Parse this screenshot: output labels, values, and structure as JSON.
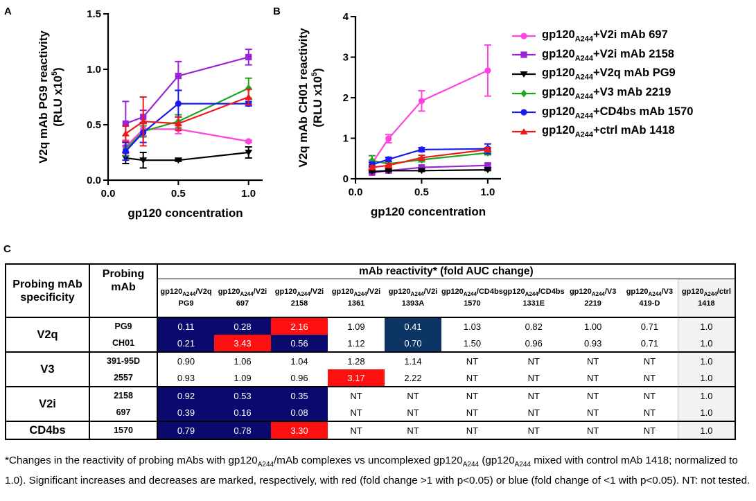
{
  "panels": {
    "a": "A",
    "b": "B",
    "c": "C"
  },
  "chart_data": [
    {
      "type": "line",
      "title": "",
      "xlabel": "gp120 concentration",
      "ylabel": "V2q mAb PG9 reactivity",
      "ylabel2": "(RLU x10",
      "ylabel2_sup": "5",
      "ylabel2_end": ")",
      "xlim": [
        0,
        1.1
      ],
      "ylim": [
        0,
        1.5
      ],
      "xticks": [
        "0.0",
        "0.5",
        "1.0"
      ],
      "yticks": [
        "0.0",
        "0.5",
        "1.0",
        "1.5"
      ],
      "x": [
        0.125,
        0.25,
        0.5,
        1.0
      ],
      "series": [
        {
          "name": "gp120A244+V2i mAb 697",
          "color": "#ff44dd",
          "marker": "circle",
          "values": [
            0.3,
            0.46,
            0.46,
            0.35
          ],
          "errors": [
            0.06,
            0.06,
            0.04,
            0.01
          ]
        },
        {
          "name": "gp120A244+V2i mAb 2158",
          "color": "#9a24d8",
          "marker": "square",
          "values": [
            0.51,
            0.57,
            0.94,
            1.11
          ],
          "errors": [
            0.2,
            0.06,
            0.13,
            0.07
          ]
        },
        {
          "name": "gp120A244+V2q mAb PG9",
          "color": "#000000",
          "marker": "tri-down",
          "values": [
            0.2,
            0.18,
            0.18,
            0.25
          ],
          "errors": [
            0.05,
            0.07,
            0.01,
            0.05
          ]
        },
        {
          "name": "gp120A244+V3 mAb 2219",
          "color": "#1fa51f",
          "marker": "diamond",
          "values": [
            0.28,
            0.44,
            0.53,
            0.83
          ],
          "errors": [
            0.06,
            0.05,
            0.06,
            0.09
          ]
        },
        {
          "name": "gp120A244+CD4bs mAb 1570",
          "color": "#1a1aee",
          "marker": "circle",
          "values": [
            0.26,
            0.43,
            0.69,
            0.69
          ],
          "errors": [
            0.08,
            0.09,
            0.12,
            0.02
          ]
        },
        {
          "name": "gp120A244+ctrl mAb 1418",
          "color": "#ee1a1a",
          "marker": "tri-up",
          "values": [
            0.42,
            0.53,
            0.51,
            0.75
          ],
          "errors": [
            0.07,
            0.22,
            0.06,
            0.07
          ]
        }
      ]
    },
    {
      "type": "line",
      "title": "",
      "xlabel": "gp120 concentration",
      "ylabel": "V2q mAb CH01 reactivity",
      "ylabel2": "(RLU x10",
      "ylabel2_sup": "5",
      "ylabel2_end": ")",
      "xlim": [
        0,
        1.1
      ],
      "ylim": [
        0,
        4
      ],
      "xticks": [
        "0.0",
        "0.5",
        "1.0"
      ],
      "yticks": [
        "0",
        "1",
        "2",
        "3",
        "4"
      ],
      "x": [
        0.125,
        0.25,
        0.5,
        1.0
      ],
      "series": [
        {
          "name": "gp120A244+V2i mAb 697",
          "color": "#ff44dd",
          "marker": "circle",
          "values": [
            0.38,
            0.99,
            1.92,
            2.67
          ],
          "errors": [
            0.08,
            0.1,
            0.25,
            0.63
          ]
        },
        {
          "name": "gp120A244+V2i mAb 2158",
          "color": "#9a24d8",
          "marker": "square",
          "values": [
            0.15,
            0.2,
            0.28,
            0.33
          ],
          "errors": [
            0.03,
            0.03,
            0.04,
            0.05
          ]
        },
        {
          "name": "gp120A244+V2q mAb PG9",
          "color": "#000000",
          "marker": "tri-down",
          "values": [
            0.18,
            0.2,
            0.2,
            0.22
          ],
          "errors": [
            0.02,
            0.02,
            0.02,
            0.02
          ]
        },
        {
          "name": "gp120A244+V3 mAb 2219",
          "color": "#1fa51f",
          "marker": "diamond",
          "values": [
            0.45,
            0.37,
            0.47,
            0.64
          ],
          "errors": [
            0.12,
            0.05,
            0.05,
            0.05
          ]
        },
        {
          "name": "gp120A244+CD4bs mAb 1570",
          "color": "#1a1aee",
          "marker": "circle",
          "values": [
            0.35,
            0.48,
            0.72,
            0.74
          ],
          "errors": [
            0.06,
            0.05,
            0.05,
            0.12
          ]
        },
        {
          "name": "gp120A244+ctrl mAb 1418",
          "color": "#ee1a1a",
          "marker": "tri-up",
          "values": [
            0.28,
            0.33,
            0.52,
            0.72
          ],
          "errors": [
            0.04,
            0.04,
            0.06,
            0.05
          ]
        }
      ]
    },
    {
      "type": "table",
      "title": "mAb reactivity* (fold AUC change)",
      "corner_headers": [
        "Probing mAb specificity",
        "Probing mAb"
      ],
      "column_headers": [
        {
          "base": "gp120",
          "sub": "A244",
          "mab_class": "/V2q",
          "mab": "PG9"
        },
        {
          "base": "gp120",
          "sub": "A244",
          "mab_class": "/V2i",
          "mab": "697"
        },
        {
          "base": "gp120",
          "sub": "A244",
          "mab_class": "/V2i",
          "mab": "2158"
        },
        {
          "base": "gp120",
          "sub": "A244",
          "mab_class": "/V2i",
          "mab": "1361"
        },
        {
          "base": "gp120",
          "sub": "A244",
          "mab_class": "/V2i",
          "mab": "1393A"
        },
        {
          "base": "gp120",
          "sub": "A244",
          "mab_class": "/CD4bs",
          "mab": "1570"
        },
        {
          "base": "gp120",
          "sub": "A244",
          "mab_class": "/CD4bs",
          "mab": "1331E"
        },
        {
          "base": "gp120",
          "sub": "A244",
          "mab_class": "/V3",
          "mab": "2219"
        },
        {
          "base": "gp120",
          "sub": "A244",
          "mab_class": "/V3",
          "mab": "419-D"
        },
        {
          "base": "gp120",
          "sub": "A244",
          "mab_class": "/ctrl",
          "mab": "1418"
        }
      ],
      "groups": [
        {
          "specificity": "V2q",
          "rows": [
            {
              "mab": "PG9",
              "values": [
                "0.11",
                "0.28",
                "2.16",
                "1.09",
                "0.41",
                "1.03",
                "0.82",
                "1.00",
                "0.71",
                "1.0"
              ],
              "marks": [
                "n",
                "n",
                "r",
                "",
                "b",
                "",
                "",
                "",
                "",
                ""
              ]
            },
            {
              "mab": "CH01",
              "values": [
                "0.21",
                "3.43",
                "0.56",
                "1.12",
                "0.70",
                "1.50",
                "0.96",
                "0.93",
                "0.71",
                "1.0"
              ],
              "marks": [
                "n",
                "r",
                "n",
                "",
                "b",
                "",
                "",
                "",
                "",
                ""
              ]
            }
          ]
        },
        {
          "specificity": "V3",
          "rows": [
            {
              "mab": "391-95D",
              "values": [
                "0.90",
                "1.06",
                "1.04",
                "1.28",
                "1.14",
                "NT",
                "NT",
                "NT",
                "NT",
                "1.0"
              ],
              "marks": [
                "",
                "",
                "",
                "",
                "",
                "",
                "",
                "",
                "",
                ""
              ]
            },
            {
              "mab": "2557",
              "values": [
                "0.93",
                "1.09",
                "0.96",
                "3.17",
                "2.22",
                "NT",
                "NT",
                "NT",
                "NT",
                "1.0"
              ],
              "marks": [
                "",
                "",
                "",
                "r",
                "",
                "",
                "",
                "",
                "",
                ""
              ]
            }
          ]
        },
        {
          "specificity": "V2i",
          "rows": [
            {
              "mab": "2158",
              "values": [
                "0.92",
                "0.53",
                "0.35",
                "NT",
                "NT",
                "NT",
                "NT",
                "NT",
                "NT",
                "1.0"
              ],
              "marks": [
                "n",
                "n",
                "n",
                "",
                "",
                "",
                "",
                "",
                "",
                ""
              ]
            },
            {
              "mab": "697",
              "values": [
                "0.39",
                "0.16",
                "0.08",
                "NT",
                "NT",
                "NT",
                "NT",
                "NT",
                "NT",
                "1.0"
              ],
              "marks": [
                "n",
                "n",
                "n",
                "",
                "",
                "",
                "",
                "",
                "",
                ""
              ]
            }
          ]
        },
        {
          "specificity": "CD4bs",
          "rows": [
            {
              "mab": "1570",
              "values": [
                "0.79",
                "0.78",
                "3.30",
                "NT",
                "NT",
                "NT",
                "NT",
                "NT",
                "NT",
                "1.0"
              ],
              "marks": [
                "n",
                "n",
                "r",
                "",
                "",
                "",
                "",
                "",
                "",
                ""
              ]
            }
          ]
        }
      ]
    }
  ],
  "colors": {
    "red_mark": "#ff0f0f",
    "navy_mark": "#0a0a6e",
    "blue_mark": "#0c3566",
    "ctrl_bg": "#f2f2f2"
  },
  "footnote": {
    "p1": "*Changes in the reactivity of probing mAbs with gp120",
    "s1": "A244",
    "p2": "/mAb complexes vs uncomplexed gp120",
    "s2": "A244",
    "p3": " (gp120",
    "s3": "A244",
    "p4": " mixed with control mAb 1418; normalized to 1.0). Significant increases and decreases are marked, respectively, with red (fold change >1 with p<0.05) or blue (fold change of <1 with p<0.05). NT: not tested."
  }
}
